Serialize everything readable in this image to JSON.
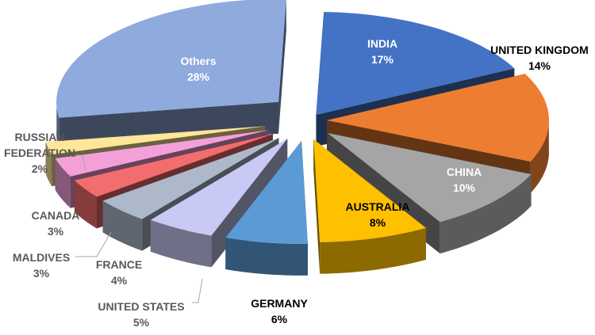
{
  "chart_data": {
    "type": "pie",
    "style": "3d-exploded",
    "title": "",
    "slices": [
      {
        "name": "INDIA",
        "pct_label": "17%",
        "value": 17,
        "color": "#4472C4",
        "label_color": "#ffffff"
      },
      {
        "name": "UNITED KINGDOM",
        "pct_label": "14%",
        "value": 14,
        "color": "#ED7D31",
        "label_color": "#000000"
      },
      {
        "name": "CHINA",
        "pct_label": "10%",
        "value": 10,
        "color": "#A5A5A5",
        "label_color": "#ffffff"
      },
      {
        "name": "AUSTRALIA",
        "pct_label": "8%",
        "value": 8,
        "color": "#FFC000",
        "label_color": "#000000"
      },
      {
        "name": "GERMANY",
        "pct_label": "6%",
        "value": 6,
        "color": "#5B9BD5",
        "label_color": "#000000"
      },
      {
        "name": "UNITED STATES",
        "pct_label": "5%",
        "value": 5,
        "color": "#C9C9F5",
        "label_color": "#595959"
      },
      {
        "name": "FRANCE",
        "pct_label": "4%",
        "value": 4,
        "color": "#ADB9CA",
        "label_color": "#595959"
      },
      {
        "name": "MALDIVES",
        "pct_label": "3%",
        "value": 3,
        "color": "#F26D6D",
        "label_color": "#595959"
      },
      {
        "name": "CANADA",
        "pct_label": "3%",
        "value": 3,
        "color": "#F4A0D8",
        "label_color": "#595959"
      },
      {
        "name": "RUSSIAN FEDERATION",
        "pct_label": "2%",
        "value": 2,
        "color": "#FFE699",
        "label_color": "#595959"
      },
      {
        "name": "Others",
        "pct_label": "28%",
        "value": 28,
        "color": "#8FAADC",
        "label_color": "#ffffff"
      }
    ]
  }
}
